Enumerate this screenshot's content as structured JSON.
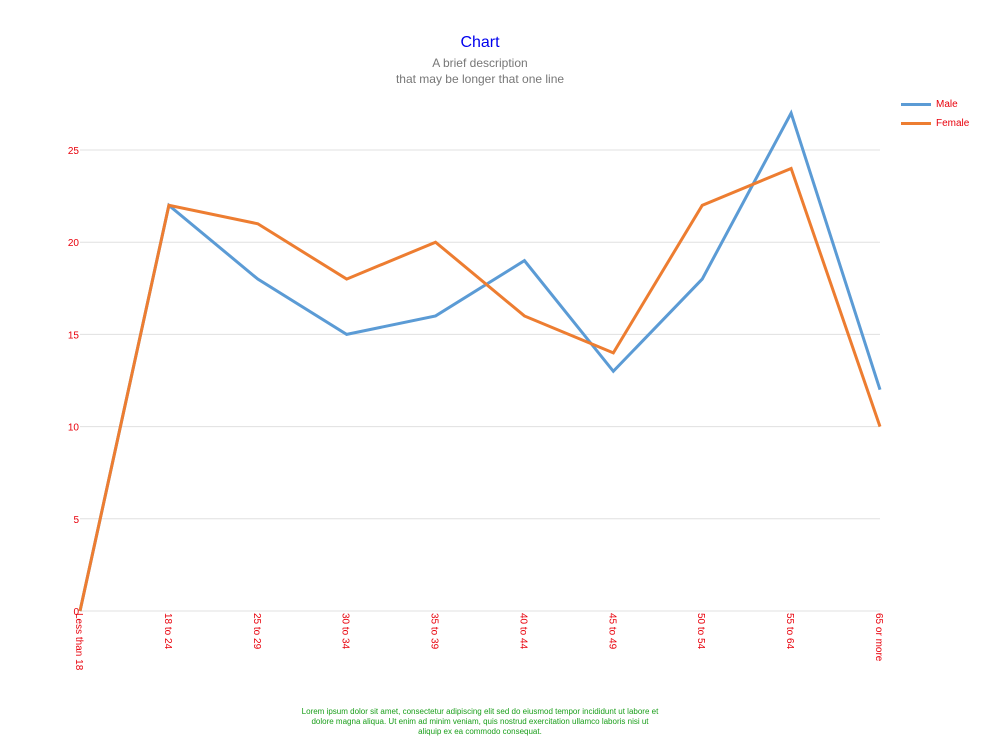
{
  "colors": {
    "title": "#0000ee",
    "subtitle": "#777777",
    "tick_labels": "#e8000b",
    "grid": "#e0e0e0",
    "footnote": "#1a9e1a"
  },
  "footnote": "Lorem ipsum dolor sit amet, consectetur adipiscing elit sed do eiusmod tempor incididunt ut labore et dolore magna aliqua. Ut enim ad minim veniam, quis nostrud exercitation ullamco laboris nisi ut aliquip ex ea commodo consequat.",
  "chart_data": {
    "type": "line",
    "title": "Chart",
    "subtitle_lines": [
      "A brief description",
      "that may be longer that one line"
    ],
    "xlabel": "",
    "ylabel": "",
    "categories": [
      "Less than 18",
      "18 to 24",
      "25 to 29",
      "30 to 34",
      "35 to 39",
      "40 to 44",
      "45 to 49",
      "50 to 54",
      "55 to 64",
      "65 or more"
    ],
    "ylim": [
      0,
      25
    ],
    "yticks": [
      0,
      5,
      10,
      15,
      20,
      25
    ],
    "grid": true,
    "legend_position": "top-right",
    "series": [
      {
        "name": "Male",
        "color": "#5b9bd5",
        "values": [
          0,
          22,
          18,
          15,
          16,
          19,
          13,
          18,
          27,
          12
        ]
      },
      {
        "name": "Female",
        "color": "#ed7d31",
        "values": [
          0,
          22,
          21,
          18,
          20,
          16,
          14,
          22,
          24,
          10
        ]
      }
    ]
  }
}
